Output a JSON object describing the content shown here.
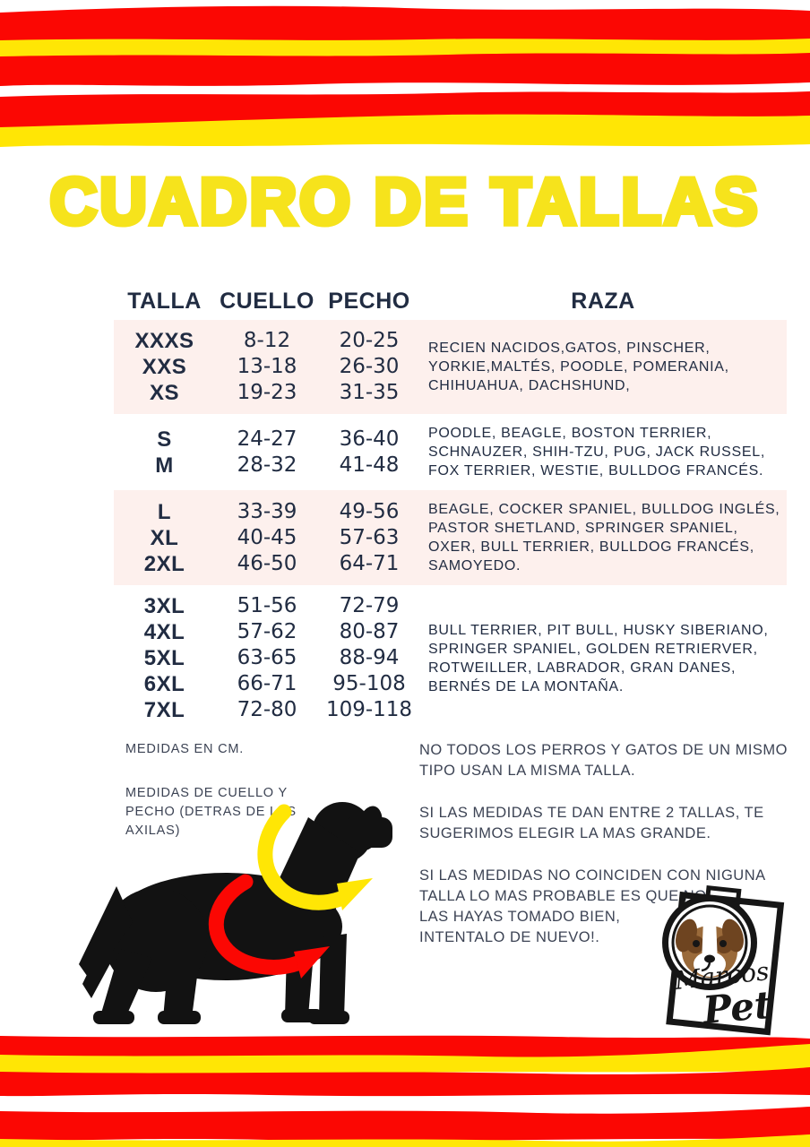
{
  "title": "CUADRO DE TALLAS",
  "table": {
    "headers": [
      "TALLA",
      "CUELLO",
      "PECHO",
      "RAZA"
    ],
    "groups": [
      {
        "highlighted": true,
        "rows": [
          [
            "XXXS",
            "8-12",
            "20-25"
          ],
          [
            "XXS",
            "13-18",
            "26-30"
          ],
          [
            "XS",
            "19-23",
            "31-35"
          ]
        ],
        "raza": "RECIEN NACIDOS,GATOS, PINSCHER, YORKIE,MALTÉS, POODLE, POMERANIA, CHIHUAHUA, DACHSHUND,"
      },
      {
        "highlighted": false,
        "rows": [
          [
            "S",
            "24-27",
            "36-40"
          ],
          [
            "M",
            "28-32",
            "41-48"
          ]
        ],
        "raza": "POODLE, BEAGLE, BOSTON TERRIER, SCHNAUZER, SHIH-TZU, PUG, JACK RUSSEL, FOX TERRIER, WESTIE, BULLDOG FRANCÉS."
      },
      {
        "highlighted": true,
        "rows": [
          [
            "L",
            "33-39",
            "49-56"
          ],
          [
            "XL",
            "40-45",
            "57-63"
          ],
          [
            "2XL",
            "46-50",
            "64-71"
          ]
        ],
        "raza": "BEAGLE, COCKER SPANIEL, BULLDOG INGLÉS, PASTOR SHETLAND, SPRINGER SPANIEL, OXER, BULL TERRIER, BULLDOG FRANCÉS, SAMOYEDO."
      },
      {
        "highlighted": false,
        "rows": [
          [
            "3XL",
            "51-56",
            "72-79"
          ],
          [
            "4XL",
            "57-62",
            "80-87"
          ],
          [
            "5XL",
            "63-65",
            "88-94"
          ],
          [
            "6XL",
            "66-71",
            "95-108"
          ],
          [
            "7XL",
            "72-80",
            "109-118"
          ]
        ],
        "raza": "BULL TERRIER, PIT BULL, HUSKY SIBERIANO, SPRINGER SPANIEL, GOLDEN RETRIERVER, ROTWEILLER, LABRADOR, GRAN DANES, BERNÉS DE LA MONTAÑA."
      }
    ]
  },
  "notes_left": [
    "MEDIDAS EN CM.",
    "MEDIDAS DE CUELLO Y\nPECHO (DETRAS DE LAS\nAXILAS)"
  ],
  "notes_right": [
    "NO TODOS LOS PERROS Y GATOS DE UN MISMO\nTIPO USAN LA MISMA TALLA.",
    "SI LAS MEDIDAS TE DAN ENTRE 2 TALLAS, TE\nSUGERIMOS ELEGIR LA MAS GRANDE.",
    "SI LAS MEDIDAS NO COINCIDEN CON NIGUNA\nTALLA LO MAS PROBABLE ES QUE NO\nLAS HAYAS TOMADO BIEN,\nINTENTALO DE NUEVO!."
  ],
  "logo": {
    "line1": "Marcos",
    "line2": "Pet"
  },
  "colors": {
    "red": "#FB0703",
    "stripe_yellow": "#FFE605",
    "title_yellow": "#F6E31C",
    "table_navy": "#212C42",
    "notes_gray": "#3C4354",
    "row_pink": "#FDF0ED"
  }
}
